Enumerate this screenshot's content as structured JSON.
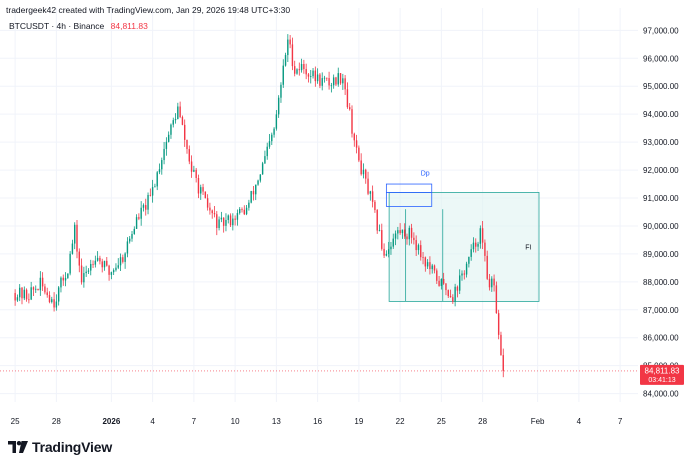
{
  "header": {
    "credit": "tradergeek42 created with TradingView.com, Jan 29, 2026 19:48 UTC+3:30",
    "symbol": "BTCUSDT · 4h · Binance",
    "last_price": "84,811.83"
  },
  "price_tag": {
    "price": "84,811.83",
    "countdown": "03:41:13",
    "color": "#f23645"
  },
  "drawings": {
    "dp_label": "Dp",
    "fi_label": "FI"
  },
  "colors": {
    "up": "#089981",
    "down": "#f23645",
    "box_fill": "#e0f3f1",
    "box_stroke": "#26a69a",
    "dp_stroke": "#2962ff"
  },
  "footer": {
    "logo_text": "TradingView",
    "logo_icon": "tradingview-logo-icon"
  },
  "chart_data": {
    "type": "candlestick",
    "symbol": "BTCUSDT",
    "timeframe": "4h",
    "exchange": "Binance",
    "y_ticks": [
      "97,000.00",
      "96,000.00",
      "95,000.00",
      "94,000.00",
      "93,000.00",
      "92,000.00",
      "91,000.00",
      "90,000.00",
      "89,000.00",
      "88,000.00",
      "87,000.00",
      "86,000.00",
      "85,000.00",
      "84,000.00"
    ],
    "y_range": [
      83700,
      97800
    ],
    "x_ticks": [
      {
        "label": "25",
        "day": 0
      },
      {
        "label": "28",
        "day": 3
      },
      {
        "label": "2026",
        "day": 7,
        "bold": true
      },
      {
        "label": "4",
        "day": 10
      },
      {
        "label": "7",
        "day": 13
      },
      {
        "label": "10",
        "day": 16
      },
      {
        "label": "13",
        "day": 19
      },
      {
        "label": "16",
        "day": 22
      },
      {
        "label": "19",
        "day": 25
      },
      {
        "label": "22",
        "day": 28
      },
      {
        "label": "25",
        "day": 31
      },
      {
        "label": "28",
        "day": 34
      },
      {
        "label": "Feb",
        "day": 38
      },
      {
        "label": "4",
        "day": 41
      },
      {
        "label": "7",
        "day": 44
      }
    ],
    "x_range_days": [
      -1.1,
      45.3
    ],
    "candles_per_day": 6,
    "close_path": [
      [
        0,
        87600
      ],
      [
        1,
        87500
      ],
      [
        2,
        87900
      ],
      [
        3,
        87300
      ],
      [
        4,
        88500
      ],
      [
        4.5,
        89800
      ],
      [
        5,
        88000
      ],
      [
        6,
        89000
      ],
      [
        7,
        88300
      ],
      [
        8,
        88900
      ],
      [
        9,
        90200
      ],
      [
        10,
        91000
      ],
      [
        11,
        92800
      ],
      [
        12,
        94200
      ],
      [
        13,
        92000
      ],
      [
        14,
        90800
      ],
      [
        15,
        90000
      ],
      [
        16,
        90300
      ],
      [
        17,
        90600
      ],
      [
        18,
        91900
      ],
      [
        19,
        93400
      ],
      [
        20,
        96700
      ],
      [
        20.5,
        95600
      ],
      [
        21,
        95700
      ],
      [
        22,
        95300
      ],
      [
        23,
        95100
      ],
      [
        24,
        95400
      ],
      [
        25,
        92600
      ],
      [
        26,
        91000
      ],
      [
        27,
        89000
      ],
      [
        28,
        89800
      ],
      [
        29,
        89700
      ],
      [
        30,
        88700
      ],
      [
        31,
        88000
      ],
      [
        32,
        87500
      ],
      [
        33,
        88600
      ],
      [
        34,
        89800
      ],
      [
        34.5,
        88200
      ],
      [
        35,
        87700
      ],
      [
        35.3,
        86000
      ],
      [
        35.6,
        84900
      ]
    ],
    "range_box": {
      "day_start": 27.2,
      "day_end": 38.1,
      "price_high": 91200,
      "price_low": 87300
    },
    "dp_box": {
      "day_start": 27.0,
      "day_end": 30.3,
      "price_high": 91500,
      "price_low": 90700
    },
    "last_price": 84811.83
  }
}
